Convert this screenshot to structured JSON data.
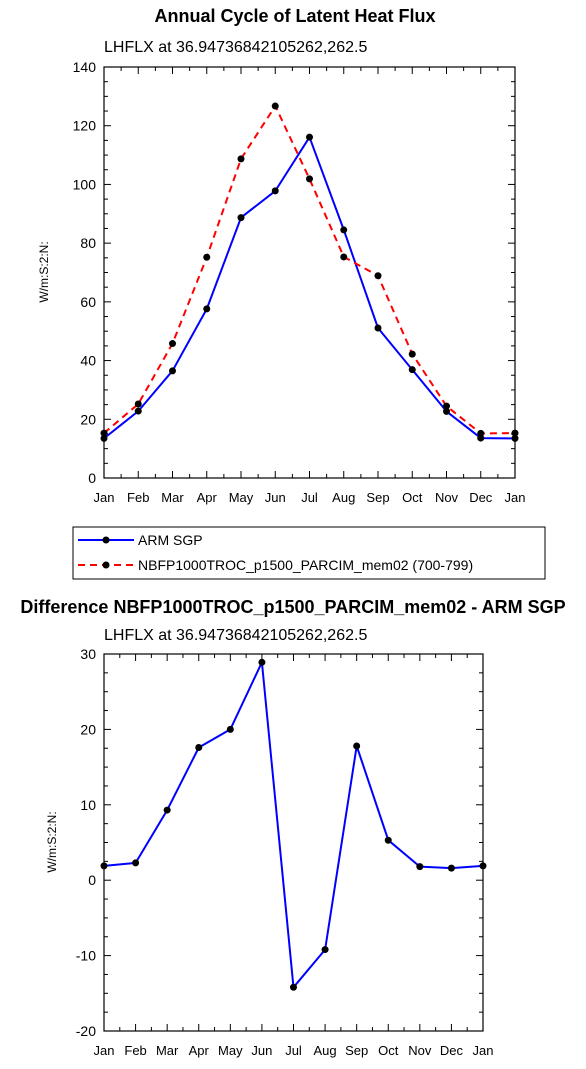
{
  "chart_data": [
    {
      "type": "line",
      "title": "Annual Cycle of Latent Heat Flux",
      "subtitle": "LHFLX at 36.94736842105262,262.5",
      "ylabel": "W/m:S:2:N:",
      "categories": [
        "Jan",
        "Feb",
        "Mar",
        "Apr",
        "May",
        "Jun",
        "Jul",
        "Aug",
        "Sep",
        "Oct",
        "Nov",
        "Dec",
        "Jan"
      ],
      "ylim": [
        0,
        140
      ],
      "yticks": [
        "0",
        "20",
        "40",
        "60",
        "80",
        "100",
        "120",
        "140"
      ],
      "legend_position": "bottom",
      "series": [
        {
          "name": "ARM SGP",
          "color": "#0000ff",
          "dash": "solid",
          "values": [
            13.5,
            22.8,
            36.5,
            57.6,
            88.7,
            97.8,
            116.1,
            84.5,
            51.1,
            36.9,
            22.7,
            13.6,
            13.5
          ]
        },
        {
          "name": "NBFP1000TROC_p1500_PARCIM_mem02 (700-799)",
          "color": "#ff0000",
          "dash": "dashed",
          "values": [
            15.3,
            25.2,
            45.8,
            75.2,
            108.7,
            126.7,
            101.9,
            75.3,
            68.9,
            42.2,
            24.5,
            15.2,
            15.3
          ]
        }
      ]
    },
    {
      "type": "line",
      "title": "Difference NBFP1000TROC_p1500_PARCIM_mem02 - ARM SGP",
      "subtitle": "LHFLX at 36.94736842105262,262.5",
      "ylabel": "W/m:S:2:N:",
      "categories": [
        "Jan",
        "Feb",
        "Mar",
        "Apr",
        "May",
        "Jun",
        "Jul",
        "Aug",
        "Sep",
        "Oct",
        "Nov",
        "Dec",
        "Jan"
      ],
      "ylim": [
        -20,
        30
      ],
      "yticks": [
        "-20",
        "-10",
        "0",
        "10",
        "20",
        "30"
      ],
      "series": [
        {
          "color": "#0000ff",
          "dash": "solid",
          "values": [
            1.9,
            2.3,
            9.3,
            17.6,
            20.0,
            28.9,
            -14.2,
            -9.2,
            17.8,
            5.3,
            1.8,
            1.6,
            1.9
          ]
        }
      ]
    }
  ]
}
